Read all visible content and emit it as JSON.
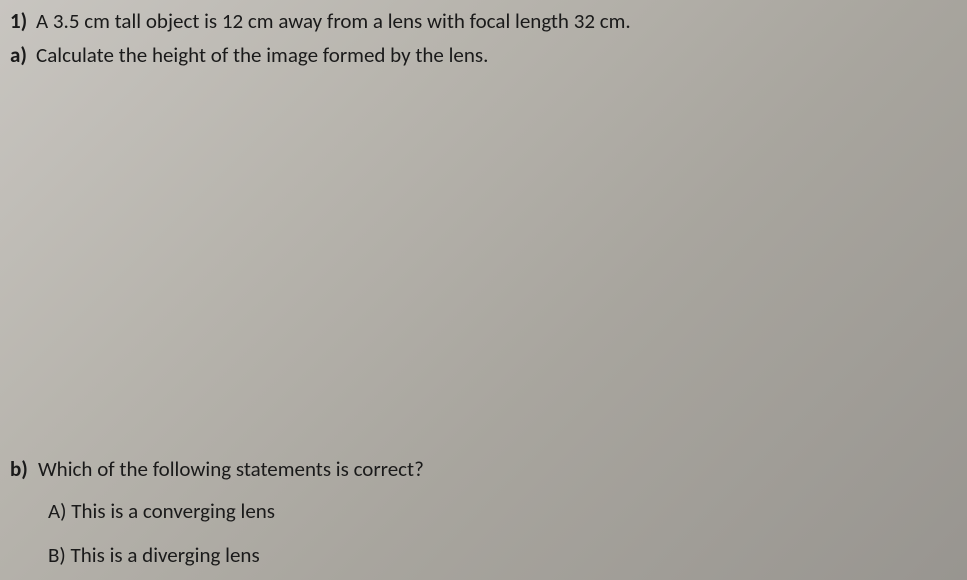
{
  "background_color": "#b8b5ae",
  "text_color": "#1a1a1a",
  "font_family": "Calibri",
  "font_size": 21,
  "question": {
    "number": "1)",
    "text": "A 3.5 cm tall object is 12 cm away from a lens with focal length 32 cm."
  },
  "part_a": {
    "label": "a)",
    "text": "Calculate the height of the image formed by the lens."
  },
  "part_b": {
    "label": "b)",
    "text": "Which of the following statements is correct?",
    "options": {
      "A": "A) This is a converging lens",
      "B": "B) This is a diverging lens"
    }
  }
}
